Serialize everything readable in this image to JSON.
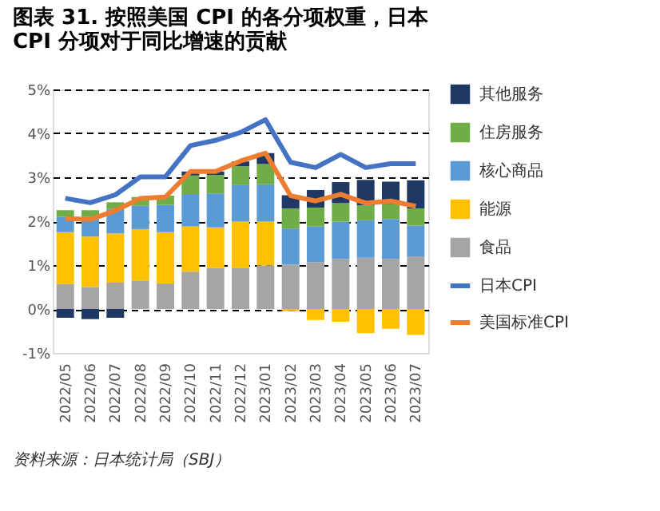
{
  "chart_data": {
    "type": "bar",
    "stacked": true,
    "title": "图表 31. 按照美国 CPI 的各分项权重，日本 CPI 分项对于同比增速的贡献",
    "annotations": [
      "资料来源：日本统计局（SBJ）"
    ],
    "categories": [
      "2022/05",
      "2022/06",
      "2022/07",
      "2022/08",
      "2022/09",
      "2022/10",
      "2022/11",
      "2022/12",
      "2023/01",
      "2023/02",
      "2023/03",
      "2023/04",
      "2023/05",
      "2023/06",
      "2023/07"
    ],
    "series": [
      {
        "name": "食品",
        "color": "#a5a5a5",
        "values": [
          0.57,
          0.5,
          0.6,
          0.65,
          0.58,
          0.85,
          0.93,
          0.94,
          0.99,
          1.01,
          1.07,
          1.14,
          1.17,
          1.14,
          1.2
        ]
      },
      {
        "name": "能源",
        "color": "#ffc000",
        "values": [
          1.18,
          1.15,
          1.12,
          1.17,
          1.17,
          1.03,
          0.93,
          1.05,
          1.0,
          -0.05,
          -0.25,
          -0.29,
          -0.55,
          -0.45,
          -0.59
        ]
      },
      {
        "name": "核心商品",
        "color": "#5b9bd5",
        "values": [
          0.35,
          0.45,
          0.56,
          0.53,
          0.62,
          0.72,
          0.77,
          0.83,
          0.85,
          0.82,
          0.81,
          0.85,
          0.85,
          0.91,
          0.7
        ]
      },
      {
        "name": "住房服务",
        "color": "#70ad47",
        "values": [
          0.15,
          0.15,
          0.15,
          0.2,
          0.21,
          0.44,
          0.42,
          0.43,
          0.46,
          0.46,
          0.43,
          0.42,
          0.34,
          0.34,
          0.39
        ]
      },
      {
        "name": "其他服务",
        "color": "#203864",
        "values": [
          -0.2,
          -0.23,
          -0.2,
          0,
          0,
          0.09,
          0.08,
          0.11,
          0.25,
          0.3,
          0.4,
          0.48,
          0.58,
          0.51,
          0.64
        ]
      },
      {
        "name": "日本CPI",
        "type": "line",
        "color": "#4472c4",
        "values": [
          2.52,
          2.42,
          2.6,
          3.01,
          3.01,
          3.72,
          3.84,
          4.02,
          4.31,
          3.34,
          3.22,
          3.52,
          3.22,
          3.31,
          3.31
        ]
      },
      {
        "name": "美国标准CPI",
        "type": "line",
        "color": "#ed7d31",
        "values": [
          2.06,
          2.04,
          2.24,
          2.52,
          2.55,
          3.13,
          3.13,
          3.37,
          3.55,
          2.58,
          2.46,
          2.61,
          2.41,
          2.46,
          2.34
        ]
      }
    ],
    "ylim": [
      -1,
      5
    ],
    "yticks": [
      {
        "value": -1,
        "label": "-1%"
      },
      {
        "value": 0,
        "label": "0%"
      },
      {
        "value": 1,
        "label": "1%"
      },
      {
        "value": 2,
        "label": "2%"
      },
      {
        "value": 3,
        "label": "3%"
      },
      {
        "value": 4,
        "label": "4%"
      },
      {
        "value": 5,
        "label": "5%"
      }
    ],
    "grid": "y",
    "legend": "right",
    "marker": "none",
    "line_style": "solid"
  }
}
